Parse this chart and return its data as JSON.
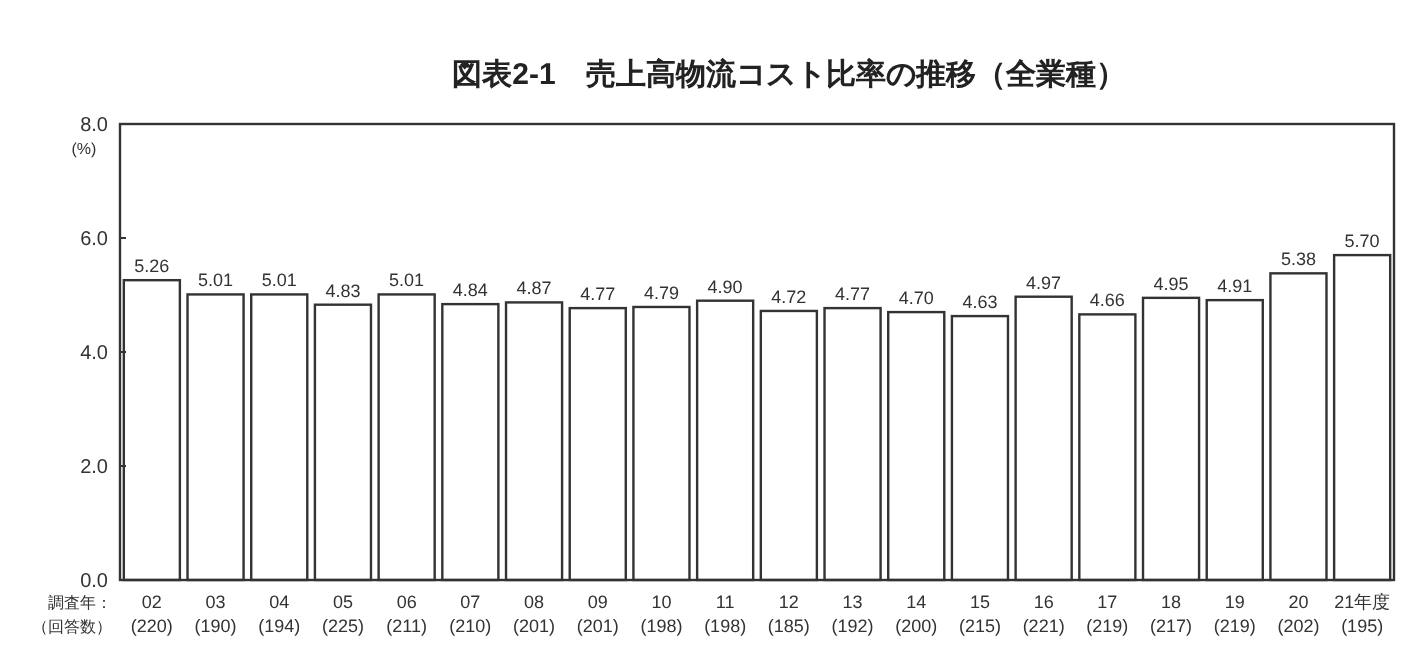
{
  "chart_data": {
    "type": "bar",
    "title": "図表2-1　売上高物流コスト比率の推移（全業種）",
    "ylabel": "(%)",
    "xlabel": "調査年：",
    "annotations": [
      "（回答数）"
    ],
    "categories": [
      "02\n(220)",
      "03\n(190)",
      "04\n(194)",
      "05\n(225)",
      "06\n(211)",
      "07\n(210)",
      "08\n(201)",
      "09\n(201)",
      "10\n(198)",
      "11\n(198)",
      "12\n(185)",
      "13\n(192)",
      "14\n(200)",
      "15\n(215)",
      "16\n(221)",
      "17\n(219)",
      "18\n(217)",
      "19\n(219)",
      "20\n(202)",
      "21年度\n(195)"
    ],
    "values": [
      5.26,
      5.01,
      5.01,
      4.83,
      5.01,
      4.84,
      4.87,
      4.77,
      4.79,
      4.9,
      4.72,
      4.77,
      4.7,
      4.63,
      4.97,
      4.66,
      4.95,
      4.91,
      5.38,
      5.7
    ],
    "value_labels": [
      "5.26",
      "5.01",
      "5.01",
      "4.83",
      "5.01",
      "4.84",
      "4.87",
      "4.77",
      "4.79",
      "4.90",
      "4.72",
      "4.77",
      "4.70",
      "4.63",
      "4.97",
      "4.66",
      "4.95",
      "4.91",
      "5.38",
      "5.70"
    ],
    "color": "#ffffff",
    "ylim": [
      0,
      8
    ],
    "yticks": [
      {
        "value": 0,
        "label": "0.0"
      },
      {
        "value": 2,
        "label": "2.0"
      },
      {
        "value": 4,
        "label": "4.0"
      },
      {
        "value": 6,
        "label": "6.0"
      },
      {
        "value": 8,
        "label": "8.0"
      }
    ],
    "grid": false
  }
}
